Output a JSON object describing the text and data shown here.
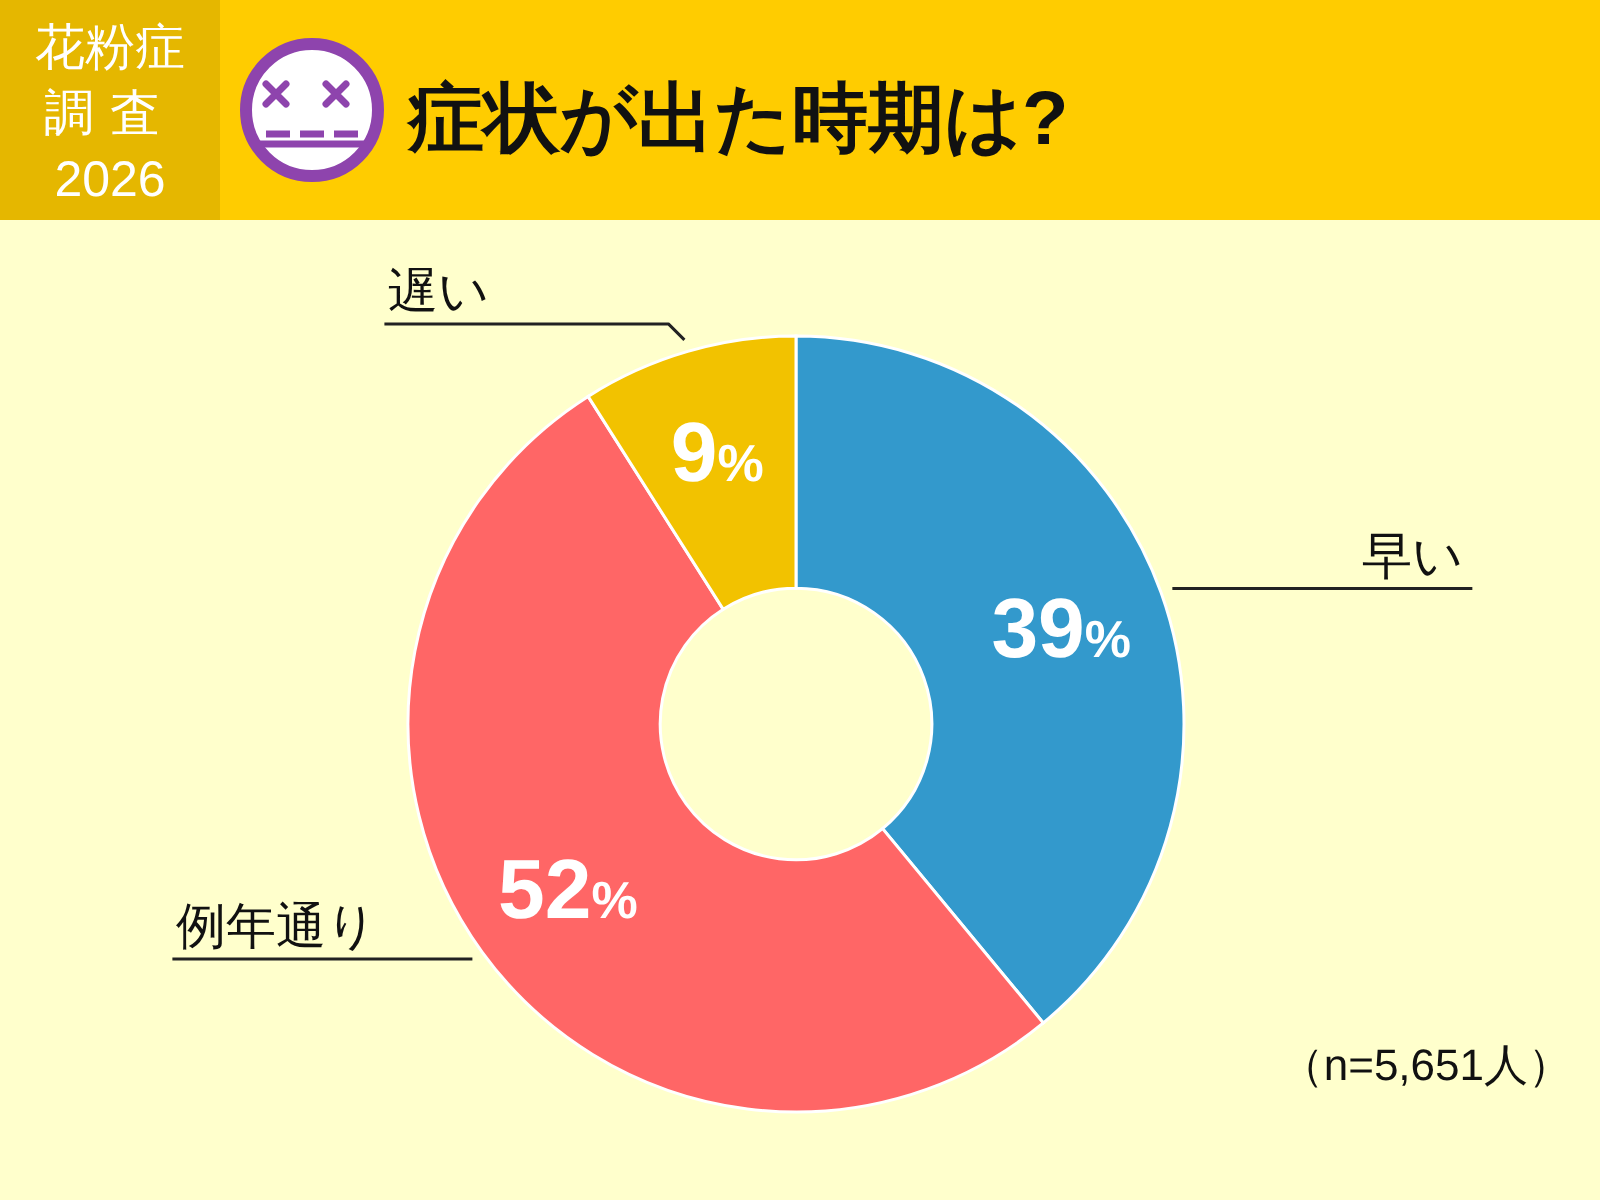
{
  "chart_data": {
    "type": "donut",
    "title": "症状が出た時期は?",
    "subtitle": "花粉症調査2026",
    "categories": [
      "早い",
      "例年通り",
      "遅い"
    ],
    "values": [
      39,
      52,
      9
    ],
    "colors": [
      "#3399cc",
      "#ff6666",
      "#f2c200"
    ],
    "value_labels": [
      "39%",
      "52%",
      "9%"
    ],
    "annotations": [
      "（n=5,651人）"
    ]
  }
}
